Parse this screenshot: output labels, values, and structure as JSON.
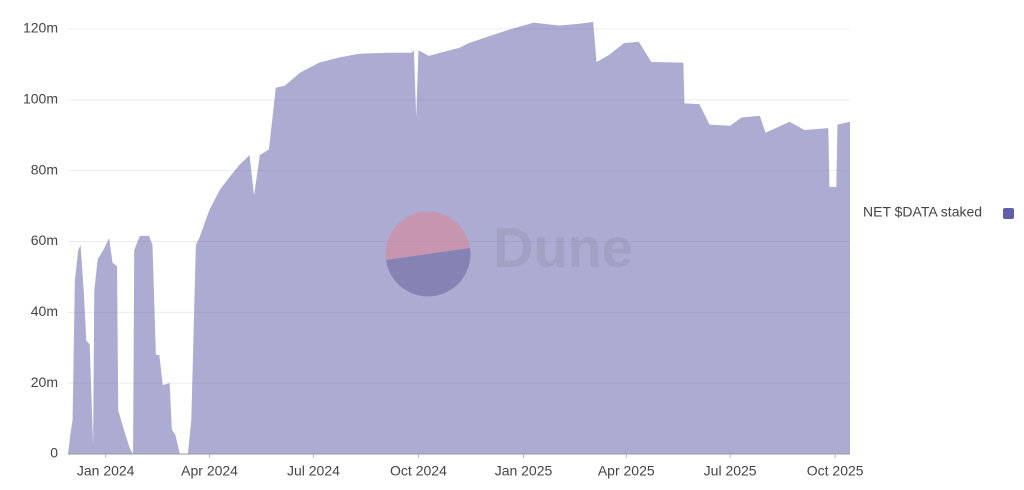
{
  "chart_data": {
    "type": "area",
    "watermark": "Dune",
    "x": [
      "2023-11-29",
      "2023-12-01",
      "2023-12-03",
      "2023-12-05",
      "2023-12-08",
      "2023-12-10",
      "2023-12-13",
      "2023-12-15",
      "2023-12-18",
      "2023-12-21",
      "2023-12-22",
      "2023-12-25",
      "2023-12-30",
      "2024-01-04",
      "2024-01-07",
      "2024-01-11",
      "2024-01-12",
      "2024-01-17",
      "2024-01-22",
      "2024-01-25",
      "2024-01-26",
      "2024-01-31",
      "2024-02-08",
      "2024-02-11",
      "2024-02-14",
      "2024-02-17",
      "2024-02-20",
      "2024-02-26",
      "2024-02-28",
      "2024-03-02",
      "2024-03-06",
      "2024-03-13",
      "2024-03-16",
      "2024-03-20",
      "2024-03-23",
      "2024-04-01",
      "2024-04-10",
      "2024-04-18",
      "2024-04-27",
      "2024-05-06",
      "2024-05-10",
      "2024-05-15",
      "2024-05-23",
      "2024-05-29",
      "2024-06-06",
      "2024-06-19",
      "2024-07-06",
      "2024-07-24",
      "2024-08-10",
      "2024-09-05",
      "2024-09-19",
      "2024-09-25",
      "2024-09-27",
      "2024-09-29",
      "2024-10-01",
      "2024-10-10",
      "2024-10-24",
      "2024-11-06",
      "2024-11-14",
      "2024-12-02",
      "2024-12-19",
      "2025-01-10",
      "2025-02-01",
      "2025-02-19",
      "2025-03-03",
      "2025-03-06",
      "2025-03-17",
      "2025-03-30",
      "2025-04-12",
      "2025-04-23",
      "2025-05-21",
      "2025-05-22",
      "2025-06-04",
      "2025-06-13",
      "2025-07-01",
      "2025-07-11",
      "2025-07-27",
      "2025-08-01",
      "2025-08-22",
      "2025-09-04",
      "2025-09-25",
      "2025-09-26",
      "2025-10-02",
      "2025-10-03",
      "2025-10-14"
    ],
    "series": [
      {
        "name": "NET $DATA staked",
        "color": "#5f5ea6",
        "values": [
          0,
          5.4,
          9.6,
          49,
          57.6,
          59,
          45,
          32,
          31,
          2.5,
          46,
          55,
          57.6,
          61,
          54,
          53,
          12.4,
          6.8,
          1.7,
          0,
          57.6,
          61.6,
          61.6,
          59,
          28,
          28,
          19.5,
          20,
          6.8,
          5.4,
          0,
          0,
          9.6,
          59,
          61,
          69,
          74.6,
          78,
          81.6,
          84.4,
          73,
          84.4,
          86,
          103.4,
          104,
          107.6,
          110.5,
          112,
          113,
          113.3,
          113.3,
          113.3,
          114,
          95,
          114,
          112.4,
          113.6,
          114.7,
          116,
          118,
          119.8,
          121.8,
          121,
          121.5,
          122,
          110.7,
          112.7,
          116,
          116.4,
          110.7,
          110.5,
          99,
          98.8,
          93,
          92.7,
          95,
          95.5,
          90.7,
          93.8,
          91.5,
          92,
          75.4,
          75.4,
          93,
          93.8
        ]
      }
    ],
    "xlim": [
      "2023-11-29",
      "2025-10-14"
    ],
    "xticks": [
      {
        "value": "2024-01-01",
        "label": "Jan 2024"
      },
      {
        "value": "2024-04-01",
        "label": "Apr 2024"
      },
      {
        "value": "2024-07-01",
        "label": "Jul 2024"
      },
      {
        "value": "2024-10-01",
        "label": "Oct 2024"
      },
      {
        "value": "2025-01-01",
        "label": "Jan 2025"
      },
      {
        "value": "2025-04-01",
        "label": "Apr 2025"
      },
      {
        "value": "2025-07-01",
        "label": "Jul 2025"
      },
      {
        "value": "2025-10-01",
        "label": "Oct 2025"
      }
    ],
    "ylim": [
      0,
      120
    ],
    "yticks": [
      0,
      {
        "value": 20,
        "label": "20m"
      },
      {
        "value": 40,
        "label": "40m"
      },
      {
        "value": 60,
        "label": "60m"
      },
      {
        "value": 80,
        "label": "80m"
      },
      {
        "value": 100,
        "label": "100m"
      },
      {
        "value": 120,
        "label": "120m"
      }
    ],
    "grid": true,
    "legend": "right"
  }
}
